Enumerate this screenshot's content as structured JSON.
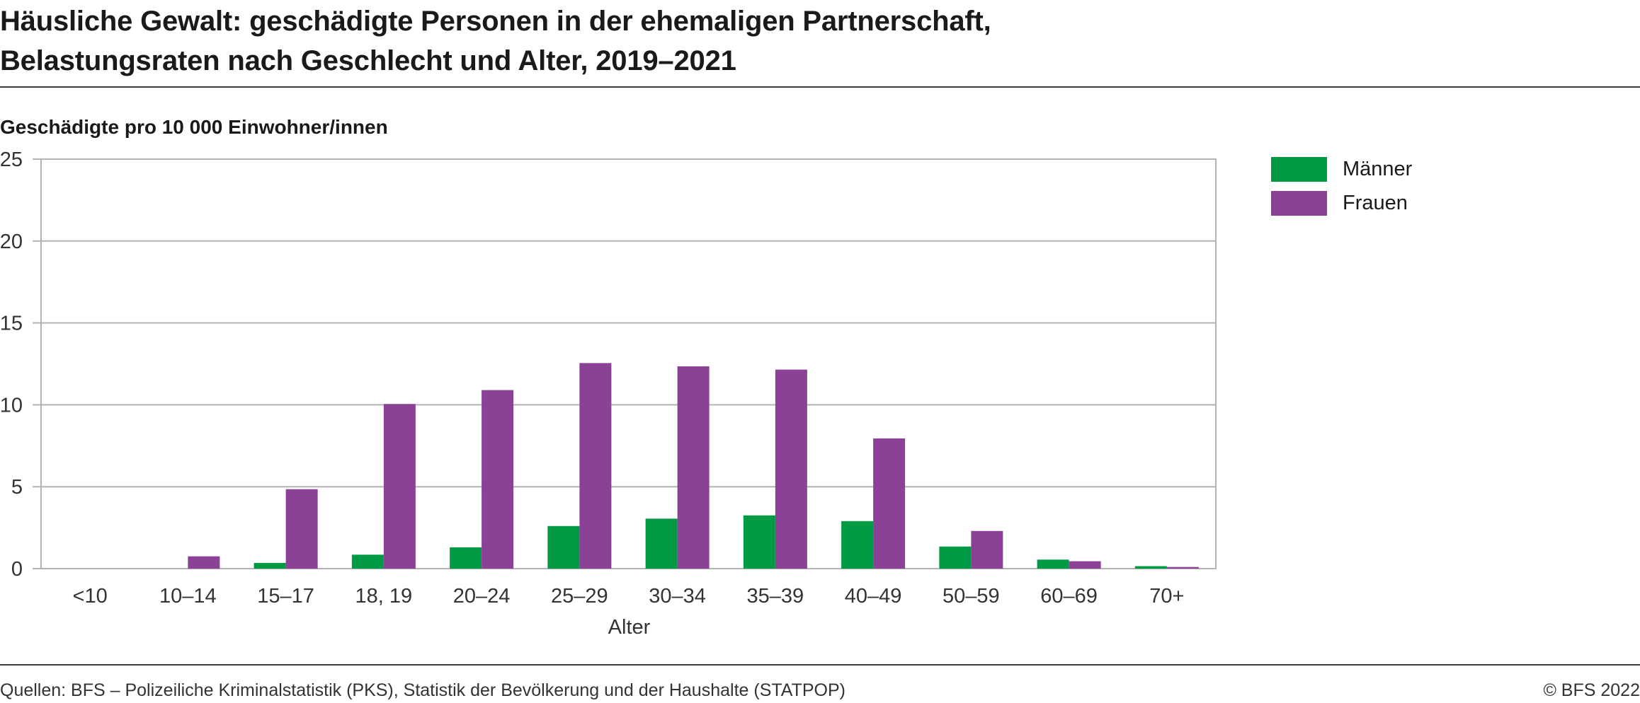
{
  "title_line1": "Häusliche Gewalt: geschädigte Personen in der ehemaligen Partnerschaft,",
  "title_line2": "Belastungsraten nach Geschlecht und Alter, 2019–2021",
  "footer": {
    "source": "Quellen: BFS – Polizeiliche Kriminalstatistik (PKS), Statistik der Bevölkerung und der Haushalte (STATPOP)",
    "copyright": "© BFS 2022"
  },
  "chart_data": {
    "type": "bar",
    "ylabel": "Geschädigte pro 10 000 Einwohner/innen",
    "xlabel": "Alter",
    "ylim": [
      0,
      25
    ],
    "yticks": [
      0,
      5,
      10,
      15,
      20,
      25
    ],
    "grid": true,
    "legend_position": "right",
    "categories": [
      "<10",
      "10–14",
      "15–17",
      "18, 19",
      "20–24",
      "25–29",
      "30–34",
      "35–39",
      "40–49",
      "50–59",
      "60–69",
      "70+"
    ],
    "series": [
      {
        "name": "Männer",
        "color": "#009a44",
        "values": [
          0.0,
          0.0,
          0.35,
          0.85,
          1.3,
          2.6,
          3.05,
          3.25,
          2.9,
          1.35,
          0.55,
          0.15
        ]
      },
      {
        "name": "Frauen",
        "color": "#8b4196",
        "values": [
          0.0,
          0.75,
          4.85,
          10.05,
          10.9,
          12.55,
          12.35,
          12.15,
          7.95,
          2.3,
          0.45,
          0.1
        ]
      }
    ]
  }
}
